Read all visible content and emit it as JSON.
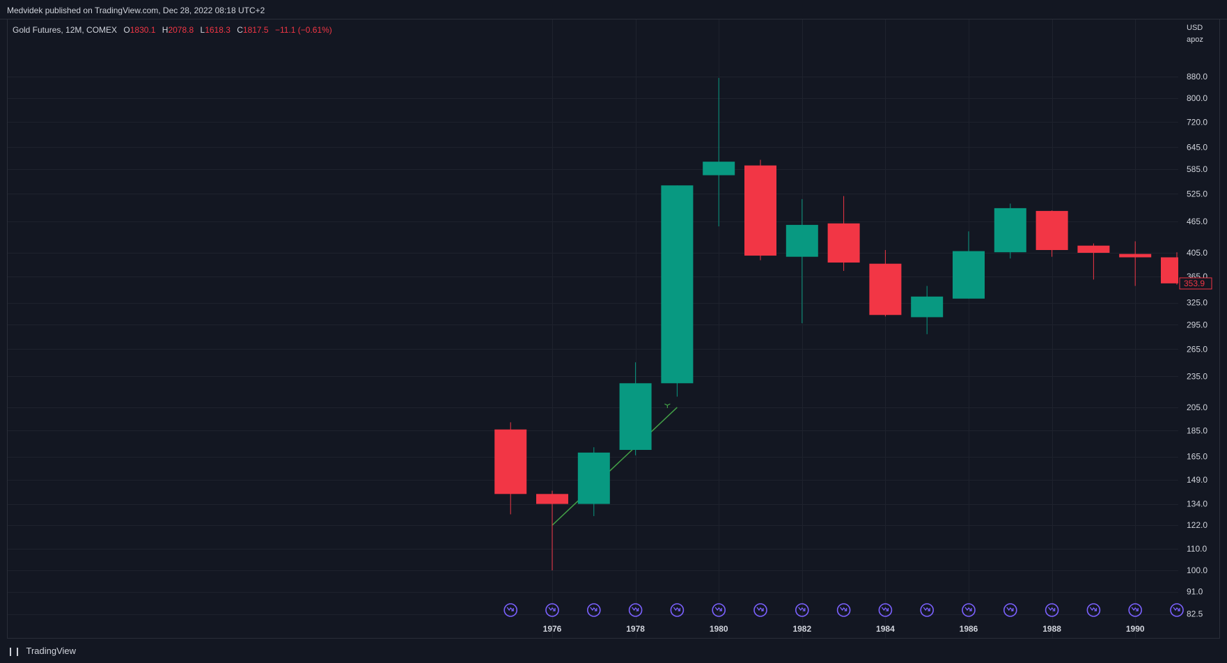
{
  "header": {
    "published": "Medvidek published on TradingView.com, Dec 28, 2022 08:18 UTC+2"
  },
  "legend": {
    "symbol": "Gold Futures, 12M, COMEX",
    "open_label": "O",
    "open": "1830.1",
    "high_label": "H",
    "high": "2078.8",
    "low_label": "L",
    "low": "1618.3",
    "close_label": "C",
    "close": "1817.5",
    "change": "−11.1 (−0.61%)"
  },
  "price_axis": {
    "currency": "USD",
    "note": "apoz"
  },
  "footer": {
    "brand": "TradingView"
  },
  "colors": {
    "up": "#089981",
    "down": "#f23645",
    "background": "#131722",
    "grid": "#1e222d",
    "event_icon": "#7b61ff",
    "trendline": "#43a047"
  },
  "chart_data": {
    "type": "candlestick",
    "scale": "log",
    "y_ticks": [
      82.5,
      91.0,
      100.0,
      110.0,
      122.0,
      134.0,
      149.0,
      165.0,
      185.0,
      205.0,
      235.0,
      265.0,
      295.0,
      325.0,
      365.0,
      405.0,
      465.0,
      525.0,
      585.0,
      645.0,
      720.0,
      800.0,
      880.0
    ],
    "y_tick_labels": [
      "82.5",
      "91.0",
      "100.0",
      "110.0",
      "122.0",
      "134.0",
      "149.0",
      "165.0",
      "185.0",
      "205.0",
      "235.0",
      "265.0",
      "295.0",
      "325.0",
      "365.0",
      "405.0",
      "465.0",
      "525.0",
      "585.0",
      "645.0",
      "720.0",
      "800.0",
      "880.0"
    ],
    "x_tick_labels": [
      "1976",
      "1978",
      "1980",
      "1982",
      "1984",
      "1986",
      "1988",
      "1990"
    ],
    "last_price_label": "353.9",
    "candles": [
      {
        "year": 1975,
        "open": 186,
        "high": 192,
        "low": 128,
        "close": 140
      },
      {
        "year": 1976,
        "open": 140,
        "high": 142,
        "low": 100,
        "close": 134
      },
      {
        "year": 1977,
        "open": 134,
        "high": 172,
        "low": 127,
        "close": 168
      },
      {
        "year": 1978,
        "open": 170,
        "high": 250,
        "low": 166,
        "close": 228
      },
      {
        "year": 1979,
        "open": 228,
        "high": 545,
        "low": 215,
        "close": 545
      },
      {
        "year": 1980,
        "open": 570,
        "high": 875,
        "low": 455,
        "close": 605
      },
      {
        "year": 1981,
        "open": 595,
        "high": 610,
        "low": 392,
        "close": 400
      },
      {
        "year": 1982,
        "open": 398,
        "high": 513,
        "low": 297,
        "close": 458
      },
      {
        "year": 1983,
        "open": 461,
        "high": 520,
        "low": 374,
        "close": 388
      },
      {
        "year": 1984,
        "open": 386,
        "high": 410,
        "low": 306,
        "close": 308
      },
      {
        "year": 1985,
        "open": 305,
        "high": 350,
        "low": 283,
        "close": 334
      },
      {
        "year": 1986,
        "open": 331,
        "high": 445,
        "low": 331,
        "close": 408
      },
      {
        "year": 1987,
        "open": 406,
        "high": 503,
        "low": 395,
        "close": 493
      },
      {
        "year": 1988,
        "open": 487,
        "high": 488,
        "low": 398,
        "close": 410
      },
      {
        "year": 1989,
        "open": 418,
        "high": 422,
        "low": 360,
        "close": 405
      },
      {
        "year": 1990,
        "open": 403,
        "high": 426,
        "low": 350,
        "close": 397
      },
      {
        "year": 1991,
        "open": 397,
        "high": 406,
        "low": 352,
        "close": 354
      }
    ],
    "trendline": {
      "from": {
        "year": 1976,
        "price": 122
      },
      "to": {
        "year": 1979,
        "price": 205
      }
    }
  }
}
